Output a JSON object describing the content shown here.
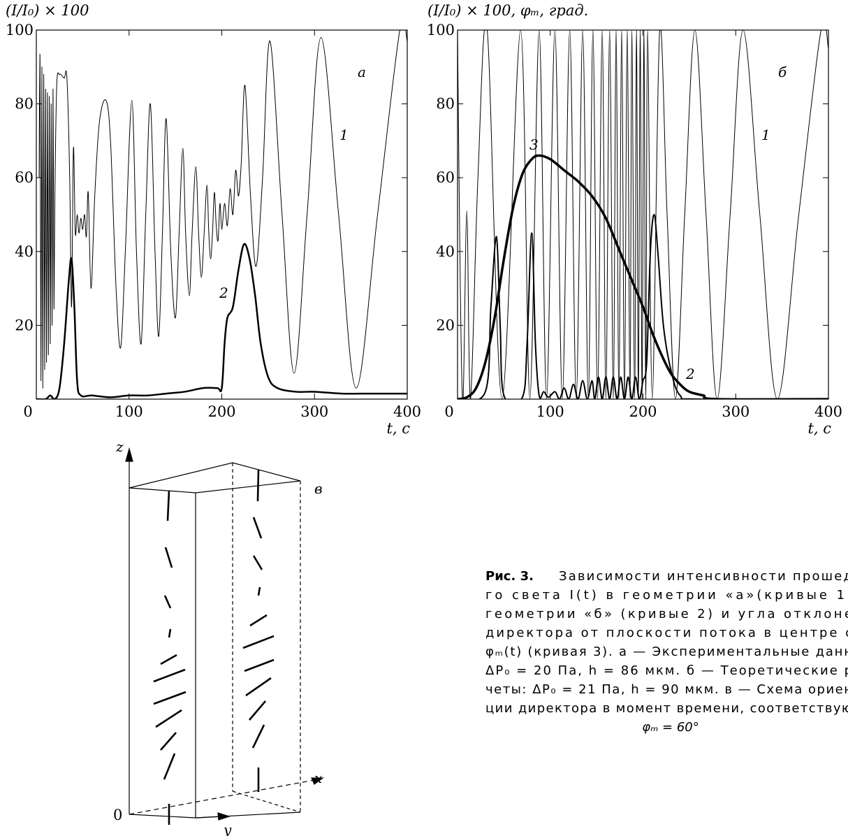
{
  "chart_data": [
    {
      "type": "line",
      "ylabel": "(I/I₀) × 100",
      "xlabel": "t, с",
      "xlim": [
        0,
        400
      ],
      "ylim": [
        0,
        100
      ],
      "xticks": [
        0,
        100,
        200,
        300,
        400
      ],
      "yticks": [
        20,
        40,
        60,
        80,
        100
      ],
      "annotations": [
        "а",
        "1",
        "2"
      ],
      "series": [
        {
          "color": "#000000",
          "line_width": 1,
          "x": [
            3,
            4,
            5,
            6,
            7,
            8,
            9,
            10,
            11,
            12,
            13,
            14,
            15,
            16,
            17,
            18,
            19,
            20,
            22,
            25,
            30,
            33,
            36,
            38,
            40,
            42,
            44,
            46,
            48,
            50,
            52,
            54,
            56,
            59,
            63,
            68,
            75,
            80,
            86,
            91,
            96,
            103,
            108,
            113,
            118,
            123,
            128,
            132,
            136,
            140,
            145,
            150,
            154,
            158,
            161,
            165,
            168,
            172,
            175,
            178,
            181,
            184,
            186,
            188,
            190,
            192,
            194,
            196,
            198,
            200,
            203,
            206,
            209,
            212,
            215,
            218,
            221,
            225,
            231,
            237,
            244,
            252,
            265,
            278,
            292,
            307,
            326,
            345,
            368,
            392,
            400
          ],
          "values": [
            60,
            92,
            5,
            90,
            3,
            88,
            8,
            84,
            10,
            83,
            12,
            82,
            15,
            80,
            20,
            84,
            25,
            55,
            85,
            88,
            87,
            87,
            60,
            25,
            68,
            45,
            50,
            45,
            49,
            46,
            50,
            44,
            56,
            30,
            55,
            75,
            81,
            70,
            30,
            14,
            40,
            81,
            40,
            15,
            50,
            80,
            40,
            17,
            45,
            76,
            40,
            22,
            45,
            68,
            45,
            28,
            45,
            63,
            45,
            33,
            45,
            58,
            45,
            38,
            45,
            56,
            47,
            43,
            53,
            46,
            53,
            47,
            57,
            50,
            62,
            55,
            64,
            85,
            55,
            36,
            60,
            97,
            50,
            7,
            50,
            98,
            50,
            3,
            50,
            100,
            97
          ]
        },
        {
          "color": "#000000",
          "line_width": 2.5,
          "x": [
            0,
            10,
            15,
            20,
            25,
            30,
            35,
            38,
            41,
            44,
            48,
            60,
            80,
            100,
            120,
            140,
            160,
            180,
            195,
            200,
            203,
            206,
            212,
            218,
            224,
            230,
            236,
            242,
            250,
            260,
            280,
            300,
            330,
            360,
            400
          ],
          "values": [
            0,
            0,
            1,
            0,
            3,
            15,
            32,
            38,
            25,
            5,
            1,
            1,
            0.5,
            1,
            1,
            1.5,
            2,
            3,
            3,
            3,
            15,
            22,
            25,
            35,
            42,
            38,
            28,
            15,
            6,
            3,
            2,
            2,
            1.5,
            1.5,
            1.5
          ]
        }
      ]
    },
    {
      "type": "line",
      "ylabel": "(I/I₀) × 100, φₘ, град.",
      "xlabel": "t, с",
      "xlim": [
        0,
        400
      ],
      "ylim": [
        0,
        100
      ],
      "xticks": [
        0,
        100,
        200,
        300,
        400
      ],
      "yticks": [
        20,
        40,
        60,
        80,
        100
      ],
      "annotations": [
        "б",
        "1",
        "3",
        "2"
      ],
      "series": [
        {
          "color": "#000000",
          "line_width": 1,
          "x": [
            0,
            3,
            6,
            10,
            14,
            22,
            32,
            48,
            68,
            78,
            88,
            96,
            105,
            113,
            121,
            128,
            135,
            141,
            146,
            151,
            156,
            160,
            164,
            168,
            171,
            174,
            177,
            180,
            183,
            186,
            188,
            191,
            193,
            195,
            197,
            199,
            201,
            203,
            205,
            210,
            218,
            226,
            235,
            245,
            256,
            268,
            280,
            294,
            308,
            326,
            345,
            368,
            392,
            400
          ],
          "values": [
            100,
            30,
            0,
            51,
            0,
            60,
            100,
            0,
            100,
            0,
            100,
            0,
            100,
            0,
            100,
            0,
            100,
            0,
            100,
            0,
            100,
            0,
            100,
            0,
            100,
            0,
            100,
            0,
            100,
            0,
            100,
            0,
            100,
            0,
            100,
            0,
            100,
            0,
            100,
            0,
            100,
            50,
            0,
            50,
            100,
            50,
            0,
            50,
            100,
            50,
            0,
            50,
            100,
            95
          ]
        },
        {
          "color": "#000000",
          "line_width": 2,
          "x": [
            0,
            30,
            36,
            42,
            46,
            50,
            70,
            75,
            80,
            84,
            88,
            93,
            98,
            105,
            110,
            115,
            120,
            125,
            130,
            135,
            140,
            145,
            148,
            152,
            156,
            160,
            164,
            168,
            172,
            176,
            180,
            184,
            188,
            192,
            196,
            200,
            204,
            208,
            212,
            216,
            222,
            230,
            240,
            260,
            400
          ],
          "values": [
            0,
            2,
            25,
            44,
            20,
            1,
            0.5,
            15,
            45,
            15,
            1,
            2,
            0.5,
            2,
            0,
            3,
            0,
            4,
            0,
            5,
            0,
            5,
            0,
            6,
            0,
            6,
            0,
            6,
            0,
            6,
            0,
            6,
            0,
            6,
            0,
            5,
            10,
            40,
            50,
            40,
            20,
            8,
            1,
            0,
            0
          ]
        },
        {
          "color": "#000000",
          "line_width": 3.5,
          "x": [
            0,
            10,
            20,
            30,
            40,
            50,
            60,
            70,
            80,
            88,
            100,
            115,
            130,
            145,
            160,
            175,
            190,
            200,
            210,
            220,
            230,
            240,
            250,
            265,
            280,
            400
          ],
          "values": [
            0,
            0.5,
            3,
            10,
            22,
            38,
            52,
            61,
            65,
            66,
            65,
            62,
            59,
            55,
            49,
            40,
            31,
            25,
            18,
            12,
            7,
            4,
            2,
            1,
            0,
            0
          ]
        }
      ]
    }
  ],
  "diagram": {
    "z": "z",
    "y": "y",
    "x": "x",
    "origin": "0",
    "label": "в"
  },
  "caption": {
    "label": "Рис. 3.",
    "lines": [
      "Зависимости интенсивности прошед",
      "го света I(t) в геометрии «a»(кривые 1)",
      "геометрии «б» (кривые 2) и угла отклоне",
      "директора от плоскости потока в центре с",
      "φₘ(t) (кривая 3). а — Экспериментальные данн",
      "ΔP₀ = 20 Па, h = 86 мкм. б — Теоретические р",
      "четы: ΔP₀ = 21 Па, h = 90 мкм. в — Схема ориен",
      "ции директора в момент времени, соответствую"
    ],
    "last": "φₘ = 60°"
  }
}
